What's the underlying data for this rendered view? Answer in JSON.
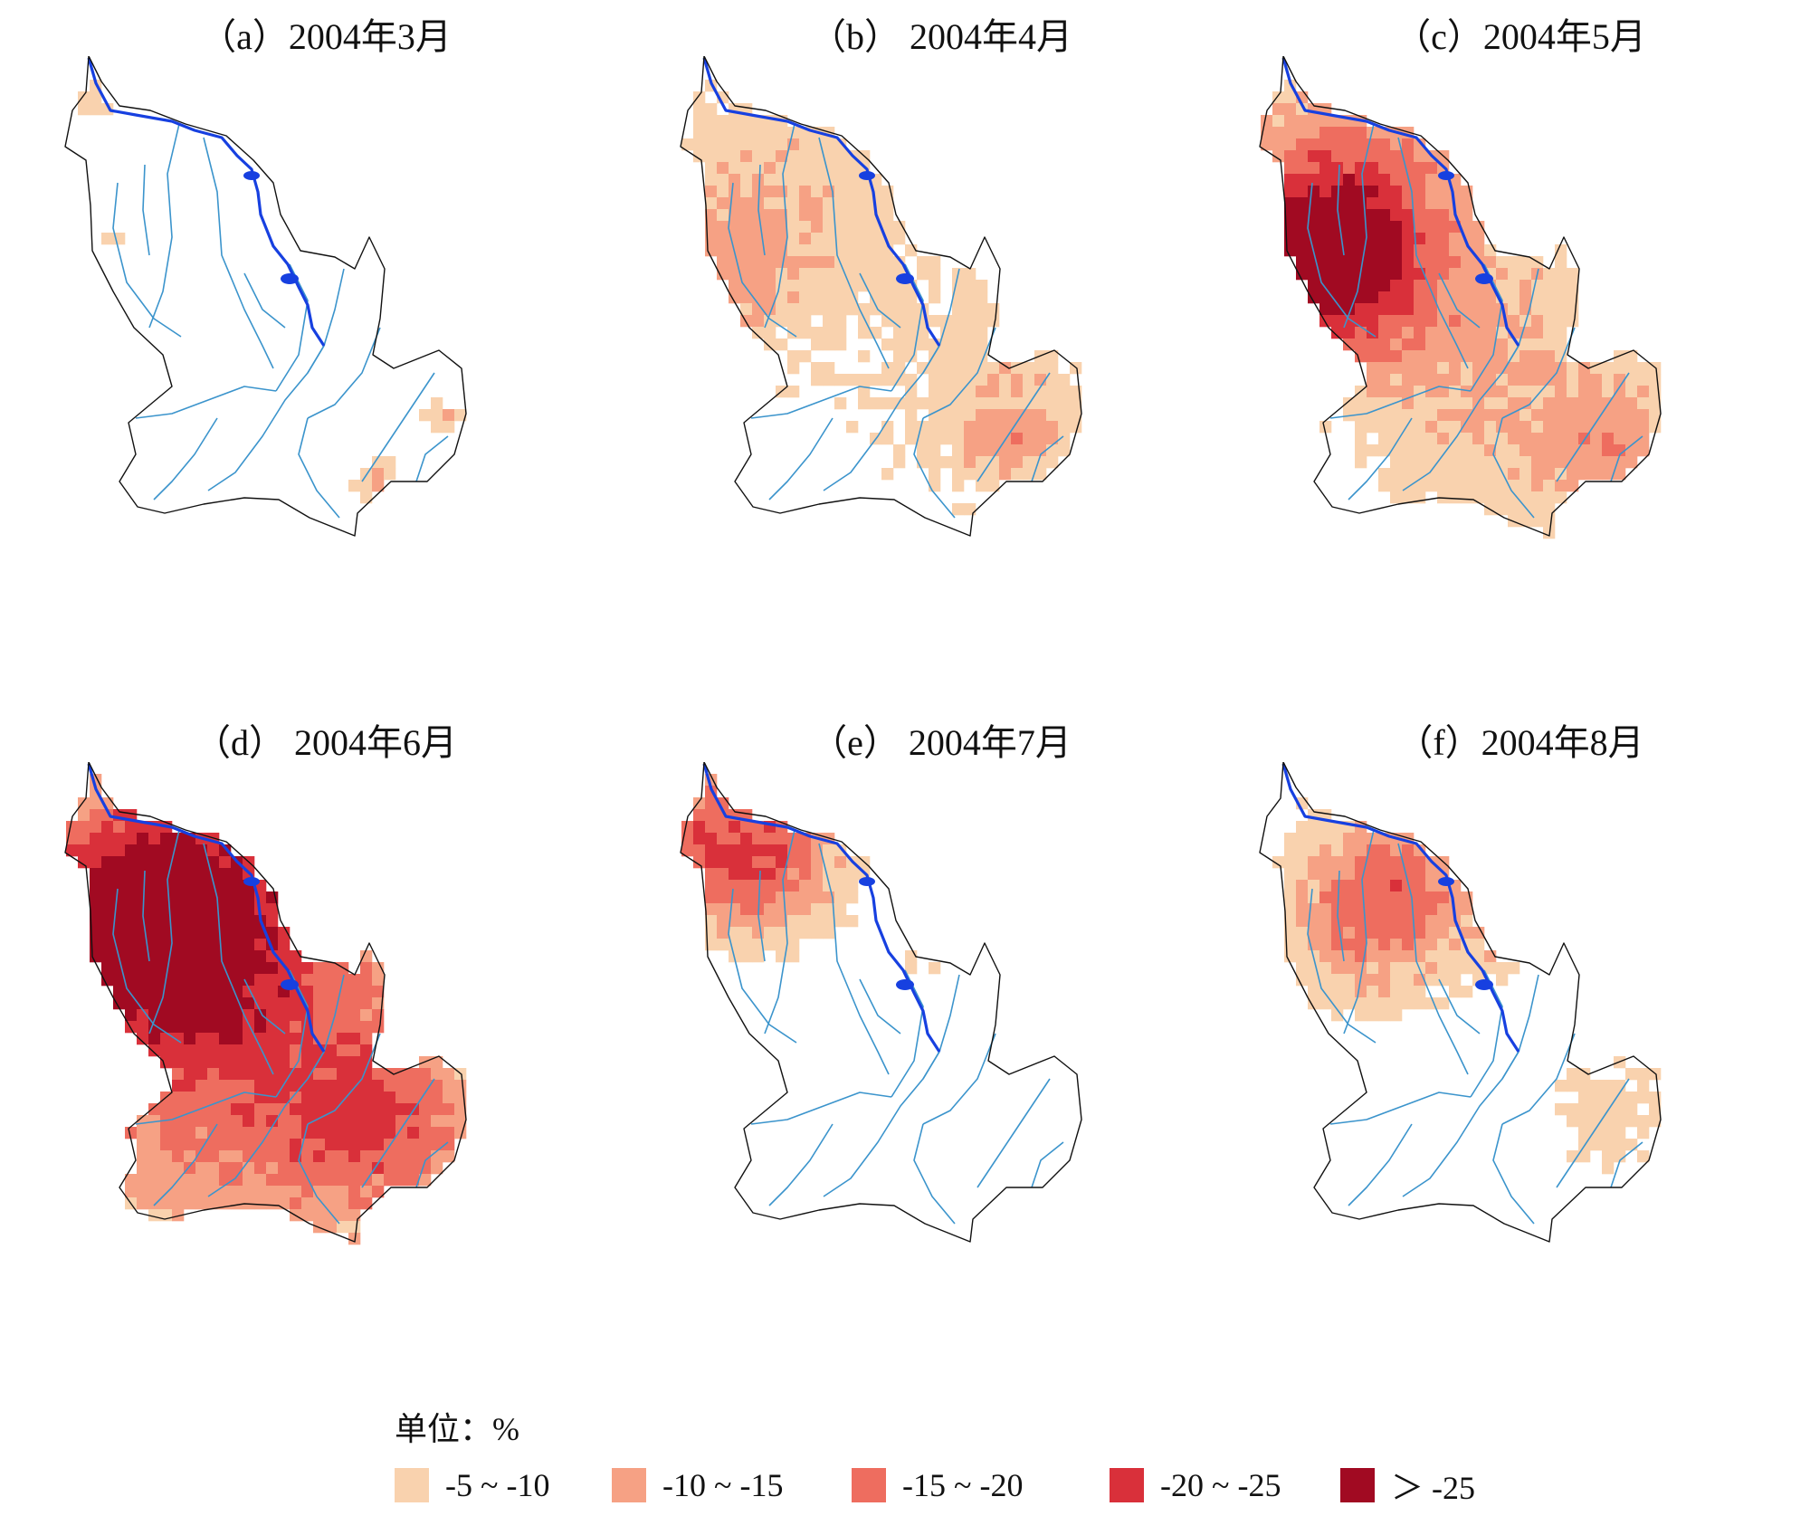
{
  "panels": [
    {
      "id": "a",
      "title": "（a）2004年3月",
      "month": 3,
      "anomaly_summary": "scattered light patches only: far north tip, mid-west, east edge, small southeast corner"
    },
    {
      "id": "b",
      "title": "（b） 2004年4月",
      "month": 4,
      "anomaly_summary": "widespread light anomaly over north, west and east; moderate patches in west and southeast"
    },
    {
      "id": "c",
      "title": "（c）2004年5月",
      "month": 5,
      "anomaly_summary": "strong anomaly along western half, -20 to -25 band on west edge, isolated > -25 cells; light to moderate in east"
    },
    {
      "id": "d",
      "title": "（d） 2004年6月",
      "month": 6,
      "anomaly_summary": "basin-wide moderate to strong anomaly, -20 to -25 across north and west, > -25 cells in northwest; strong southeast"
    },
    {
      "id": "e",
      "title": "（e） 2004年7月",
      "month": 7,
      "anomaly_summary": "moderate anomaly confined to northwest, light fringe; small light patch in east"
    },
    {
      "id": "f",
      "title": "（f）2004年8月",
      "month": 8,
      "anomaly_summary": "light to moderate anomaly in north-central area; light patches in east"
    }
  ],
  "legend": {
    "unit_label": "单位：%",
    "classes": [
      {
        "label": "-5 ~ -10",
        "color": "#f9d2ae"
      },
      {
        "label": "-10 ~ -15",
        "color": "#f6a184"
      },
      {
        "label": "-15  ~  -20",
        "color": "#ee6d5f"
      },
      {
        "label": "-20 ~ -25",
        "color": "#d9303a"
      },
      {
        "label": "＞ -25",
        "color": "#a10a22"
      }
    ]
  },
  "map_style": {
    "boundary_color": "#111111",
    "main_river_color": "#1740e0",
    "tributary_color": "#3b94cc"
  }
}
